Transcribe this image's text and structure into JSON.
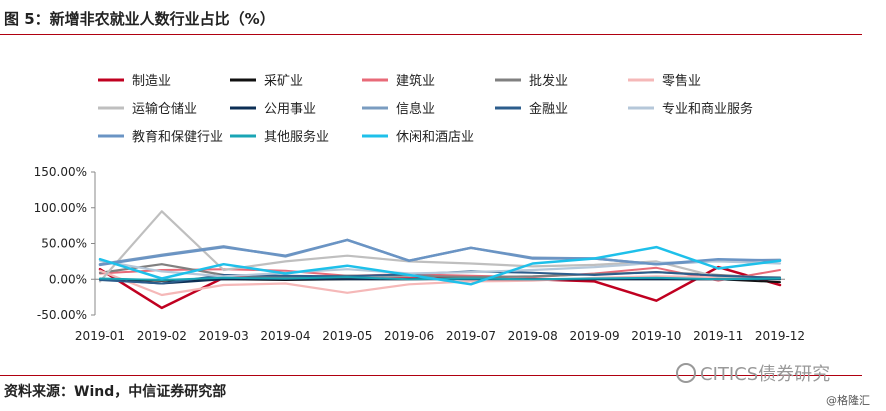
{
  "title": "图 5：新增非农就业人数行业占比（%）",
  "source": "资料来源：Wind，中信证券研究部",
  "watermark": {
    "main": "CITICS债券研究",
    "sub": "@格隆汇"
  },
  "chart_data": {
    "type": "line",
    "x": [
      "2019-01",
      "2019-02",
      "2019-03",
      "2019-04",
      "2019-05",
      "2019-06",
      "2019-07",
      "2019-08",
      "2019-09",
      "2019-10",
      "2019-11",
      "2019-12"
    ],
    "y_ticks": [
      "150.00%",
      "100.00%",
      "50.00%",
      "0.00%",
      "-50.00%"
    ],
    "ylim": [
      -50,
      150
    ],
    "grid": false,
    "legend_position": "top",
    "series": [
      {
        "name": "制造业",
        "color": "#c00020",
        "width": 2.5,
        "values": [
          14,
          -40,
          2,
          2,
          1,
          1,
          1,
          0,
          -3,
          -30,
          17,
          -8
        ]
      },
      {
        "name": "采矿业",
        "color": "#111111",
        "width": 2,
        "values": [
          0,
          -2,
          0,
          -1,
          0,
          0,
          1,
          0,
          0,
          0,
          0,
          -4
        ]
      },
      {
        "name": "建筑业",
        "color": "#e86a78",
        "width": 2,
        "values": [
          8,
          13,
          14,
          12,
          5,
          7,
          5,
          3,
          8,
          16,
          -2,
          13
        ]
      },
      {
        "name": "批发业",
        "color": "#808080",
        "width": 2.2,
        "values": [
          9,
          21,
          6,
          3,
          5,
          5,
          3,
          4,
          7,
          10,
          6,
          1
        ]
      },
      {
        "name": "零售业",
        "color": "#f5b8b8",
        "width": 2.2,
        "values": [
          12,
          -22,
          -8,
          -6,
          -19,
          -7,
          -3,
          -2,
          2,
          4,
          3,
          0
        ]
      },
      {
        "name": "运输仓储业",
        "color": "#bfbfbf",
        "width": 2.2,
        "values": [
          -3,
          95,
          13,
          25,
          33,
          25,
          22,
          18,
          20,
          25,
          3,
          3
        ]
      },
      {
        "name": "公用事业",
        "color": "#0c2f55",
        "width": 2,
        "values": [
          0,
          -6,
          0,
          0,
          0,
          0,
          0,
          0,
          0,
          0,
          0,
          0
        ]
      },
      {
        "name": "信息业",
        "color": "#7a9cc0",
        "width": 2.5,
        "values": [
          21,
          34,
          46,
          32,
          55,
          26,
          44,
          30,
          29,
          21,
          26,
          27
        ]
      },
      {
        "name": "金融业",
        "color": "#2c5d8c",
        "width": 2,
        "values": [
          -1,
          -6,
          6,
          5,
          4,
          7,
          11,
          9,
          6,
          10,
          5,
          2
        ]
      },
      {
        "name": "专业和商业服务",
        "color": "#b5c7d9",
        "width": 2.2,
        "values": [
          26,
          11,
          4,
          9,
          14,
          8,
          10,
          13,
          17,
          23,
          25,
          22
        ]
      },
      {
        "name": "教育和保健行业",
        "color": "#6a94c4",
        "width": 2.5,
        "values": [
          20,
          33,
          45,
          33,
          55,
          26,
          44,
          29,
          29,
          21,
          28,
          26
        ]
      },
      {
        "name": "其他服务业",
        "color": "#1aa5b5",
        "width": 2,
        "values": [
          1,
          -1,
          2,
          1,
          3,
          0,
          1,
          0,
          1,
          2,
          0,
          1
        ]
      },
      {
        "name": "休闲和酒店业",
        "color": "#1ec0ea",
        "width": 2.5,
        "values": [
          28,
          1,
          21,
          8,
          19,
          6,
          -7,
          22,
          29,
          45,
          15,
          26
        ]
      }
    ]
  }
}
